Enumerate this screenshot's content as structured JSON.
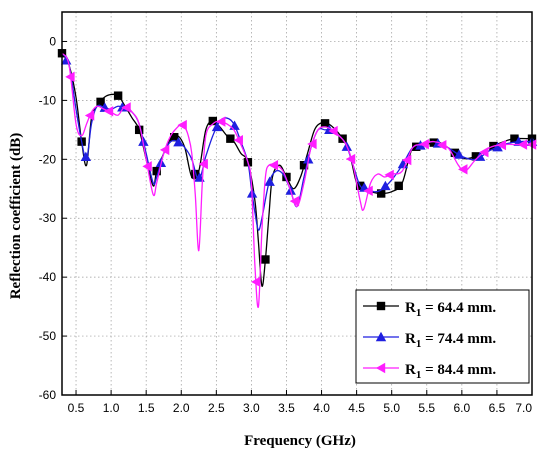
{
  "chart_data": {
    "type": "line",
    "xlabel": "Frequency (GHz)",
    "ylabel": "Reflection coefficient (dB)",
    "xlim": [
      0.3,
      7.0
    ],
    "ylim": [
      -60,
      5
    ],
    "x_ticks": [
      0.5,
      1.0,
      1.5,
      2.0,
      2.5,
      3.0,
      3.5,
      4.0,
      4.5,
      5.0,
      5.5,
      6.0,
      6.5,
      7.0
    ],
    "x_tick_labels": [
      "0.5",
      "1.0",
      "1.5",
      "2.0",
      "2.5",
      "3.0",
      "3.5",
      "4.0",
      "4.5",
      "5.0",
      "5.5",
      "6.0",
      "6.5",
      "7.0"
    ],
    "y_ticks": [
      0,
      -10,
      -20,
      -30,
      -40,
      -50,
      -60
    ],
    "y_tick_labels": [
      "0",
      "-10",
      "-20",
      "-30",
      "-40",
      "-50",
      "-60"
    ],
    "grid": true,
    "legend": {
      "position": "bottom-right",
      "prefix": "R",
      "subscript": "1",
      "entries": [
        " = 64.4 mm.",
        " = 74.4 mm.",
        " = 84.4 mm."
      ]
    },
    "series": [
      {
        "color": "#000000",
        "marker": "square",
        "x": [
          0.3,
          0.4,
          0.5,
          0.58,
          0.65,
          0.72,
          0.8,
          0.9,
          1.0,
          1.1,
          1.2,
          1.3,
          1.4,
          1.5,
          1.6,
          1.65,
          1.75,
          1.85,
          1.95,
          2.05,
          2.15,
          2.25,
          2.35,
          2.45,
          2.55,
          2.65,
          2.75,
          2.85,
          2.95,
          3.05,
          3.1,
          3.15,
          3.2,
          3.25,
          3.3,
          3.4,
          3.5,
          3.6,
          3.7,
          3.8,
          3.9,
          4.0,
          4.1,
          4.2,
          4.3,
          4.4,
          4.5,
          4.6,
          4.7,
          4.85,
          5.0,
          5.15,
          5.3,
          5.5,
          5.65,
          5.8,
          6.0,
          6.2,
          6.4,
          6.6,
          6.75,
          7.0
        ],
        "y": [
          -2,
          -4,
          -9.5,
          -17,
          -21,
          -13,
          -11,
          -9.5,
          -9,
          -9.2,
          -11,
          -13,
          -15,
          -20,
          -24.5,
          -22,
          -19,
          -16.5,
          -16,
          -18,
          -23,
          -22,
          -15,
          -13.5,
          -14.5,
          -16,
          -17,
          -19,
          -20.5,
          -27,
          -34,
          -41.5,
          -37,
          -29.5,
          -23,
          -21,
          -23,
          -25,
          -23,
          -19,
          -15,
          -13.8,
          -14,
          -15,
          -16.5,
          -19,
          -24,
          -25,
          -25.5,
          -25.8,
          -25.5,
          -24,
          -18,
          -17.5,
          -17,
          -18,
          -19.8,
          -19.5,
          -18,
          -17,
          -16.5,
          -16.5
        ]
      },
      {
        "color": "#1f1fe0",
        "marker": "triangle-up",
        "x": [
          0.3,
          0.4,
          0.5,
          0.58,
          0.65,
          0.72,
          0.8,
          0.9,
          1.0,
          1.1,
          1.2,
          1.3,
          1.4,
          1.5,
          1.6,
          1.65,
          1.75,
          1.85,
          1.95,
          2.05,
          2.15,
          2.25,
          2.35,
          2.45,
          2.55,
          2.65,
          2.75,
          2.85,
          2.95,
          3.0,
          3.05,
          3.1,
          3.15,
          3.25,
          3.35,
          3.45,
          3.55,
          3.65,
          3.75,
          3.85,
          3.95,
          4.05,
          4.15,
          4.25,
          4.35,
          4.45,
          4.55,
          4.65,
          4.75,
          4.85,
          5.0,
          5.15,
          5.3,
          5.45,
          5.6,
          5.8,
          6.0,
          6.2,
          6.4,
          6.6,
          6.8,
          7.0
        ],
        "y": [
          -2,
          -4,
          -11.5,
          -17,
          -20,
          -14,
          -11,
          -11.2,
          -11.5,
          -11,
          -11.3,
          -12,
          -14,
          -19,
          -24,
          -23,
          -19,
          -17,
          -17,
          -18,
          -20,
          -23.5,
          -19.5,
          -16,
          -13.5,
          -13,
          -14,
          -17,
          -20.5,
          -25,
          -29,
          -32,
          -30,
          -24,
          -22,
          -22.5,
          -25,
          -28,
          -23,
          -18,
          -15,
          -15,
          -15,
          -16,
          -17.5,
          -21,
          -24.5,
          -25,
          -25.5,
          -25.2,
          -23.5,
          -21,
          -18,
          -17.5,
          -17,
          -18,
          -19.5,
          -20,
          -18.5,
          -17.5,
          -17,
          -17
        ]
      },
      {
        "color": "#ff1dff",
        "marker": "triangle-left",
        "x": [
          0.3,
          0.4,
          0.5,
          0.58,
          0.65,
          0.72,
          0.8,
          0.9,
          1.0,
          1.1,
          1.2,
          1.3,
          1.4,
          1.5,
          1.6,
          1.65,
          1.75,
          1.85,
          1.95,
          2.0,
          2.05,
          2.1,
          2.15,
          2.2,
          2.25,
          2.3,
          2.35,
          2.45,
          2.55,
          2.65,
          2.75,
          2.85,
          2.95,
          3.0,
          3.05,
          3.1,
          3.15,
          3.2,
          3.25,
          3.35,
          3.45,
          3.55,
          3.65,
          3.75,
          3.85,
          3.95,
          4.05,
          4.15,
          4.25,
          4.35,
          4.45,
          4.55,
          4.6,
          4.7,
          4.8,
          4.9,
          5.0,
          5.15,
          5.3,
          5.45,
          5.6,
          5.8,
          5.95,
          6.05,
          6.2,
          6.4,
          6.6,
          6.8,
          7.0
        ],
        "y": [
          -2,
          -4,
          -14,
          -16,
          -14,
          -12,
          -11,
          -11.5,
          -12,
          -12.5,
          -11,
          -12,
          -14,
          -20,
          -26,
          -24,
          -19,
          -16,
          -14.5,
          -14,
          -14.5,
          -16,
          -19,
          -26,
          -35.5,
          -24,
          -16,
          -14,
          -13.5,
          -14,
          -15,
          -17.5,
          -20.5,
          -24,
          -38,
          -45,
          -32,
          -23,
          -21,
          -21,
          -22,
          -25,
          -28,
          -24,
          -18,
          -15,
          -14.5,
          -15,
          -16,
          -17.5,
          -21,
          -27,
          -28.5,
          -24,
          -22.5,
          -23,
          -22.5,
          -22,
          -18,
          -17.5,
          -17,
          -18,
          -21,
          -22,
          -20,
          -18,
          -17.5,
          -17.5,
          -17.5
        ]
      }
    ]
  }
}
